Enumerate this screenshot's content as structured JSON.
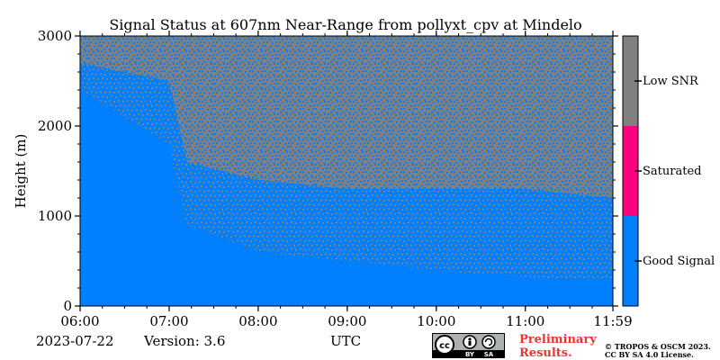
{
  "chart_data": {
    "type": "heatmap",
    "title": "Signal Status at 607nm Near-Range from pollyxt_cpv at Mindelo",
    "xlabel": "UTC",
    "ylabel": "Height (m)",
    "x_ticks": [
      "06:00",
      "07:00",
      "08:00",
      "09:00",
      "10:00",
      "11:00",
      "11:59"
    ],
    "x_range_hours": [
      6.0,
      11.983
    ],
    "y_ticks": [
      0,
      1000,
      2000,
      3000
    ],
    "ylim": [
      0,
      3000
    ],
    "categories": [
      {
        "label": "Good Signal",
        "color": "#0080ff"
      },
      {
        "label": "Saturated",
        "color": "#ff0080"
      },
      {
        "label": "Low SNR",
        "color": "#808080"
      }
    ],
    "good_signal_top_profile": {
      "time_hours": [
        6.0,
        6.5,
        7.0,
        7.2,
        7.5,
        8.0,
        8.5,
        9.0,
        9.5,
        10.0,
        10.5,
        11.0,
        11.5,
        11.983
      ],
      "height_m": [
        2400,
        2100,
        1800,
        900,
        800,
        600,
        550,
        500,
        450,
        400,
        350,
        320,
        300,
        300
      ]
    },
    "noise_fill": {
      "time_hours": [
        6.0,
        7.0,
        7.2,
        8.0,
        9.0,
        10.0,
        11.0,
        11.983
      ],
      "height_m": [
        2700,
        2500,
        1600,
        1400,
        1300,
        1300,
        1300,
        1200
      ]
    }
  },
  "footer": {
    "date": "2023-07-22",
    "version": "Version: 3.6",
    "preliminary_line1": "Preliminary",
    "preliminary_line2": "Results.",
    "copyright_line1": "© TROPOS & OSCM 2023.",
    "copyright_line2": "CC BY SA 4.0 License.",
    "cc_badge": "cc-by-sa-icon",
    "cc_by": "BY",
    "cc_sa": "SA"
  }
}
